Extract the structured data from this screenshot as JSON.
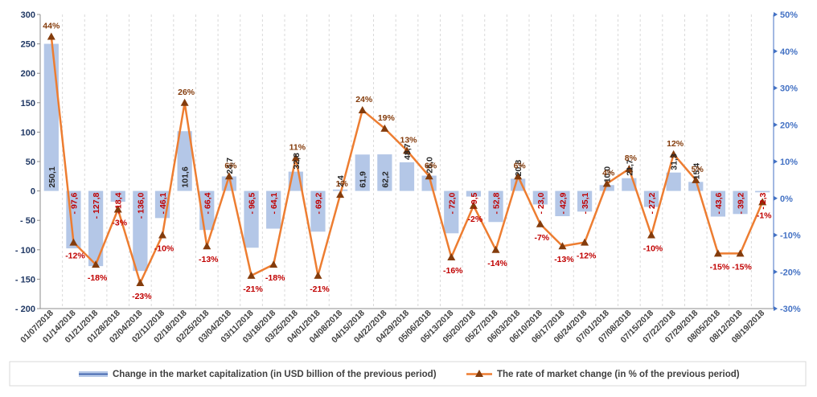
{
  "chart_data": {
    "type": "bar+line",
    "categories": [
      "01/07/2018",
      "01/14/2018",
      "01/21/2018",
      "01/28/2018",
      "02/04/2018",
      "02/11/2018",
      "02/18/2018",
      "02/25/2018",
      "03/04/2018",
      "03/11/2018",
      "03/18/2018",
      "03/25/2018",
      "04/01/2018",
      "04/08/2018",
      "04/15/2018",
      "04/22/2018",
      "04/29/2018",
      "05/06/2018",
      "05/13/2018",
      "05/20/2018",
      "05/27/2018",
      "06/03/2018",
      "06/10/2018",
      "06/17/2018",
      "06/24/2018",
      "07/01/2018",
      "07/08/2018",
      "07/15/2018",
      "07/22/2018",
      "07/29/2018",
      "08/05/2018",
      "08/12/2018",
      "08/19/2018"
    ],
    "series": [
      {
        "name": "Change in the market capitalization  (in USD billion of the previous period)",
        "axis": "left",
        "color": "#b4c7e7",
        "values": [
          250.1,
          -97.6,
          -127.8,
          -18.4,
          -136.0,
          -46.1,
          101.6,
          -66.4,
          24.7,
          -96.5,
          -64.1,
          32.8,
          -69.2,
          2.4,
          61.9,
          62.2,
          48.7,
          26.0,
          -72.0,
          -9.5,
          -52.8,
          20.8,
          -23.0,
          -42.9,
          -35.1,
          10.0,
          21.7,
          -27.2,
          31.3,
          15.4,
          -43.6,
          -39.2,
          -2.3
        ],
        "labels": [
          "250,1",
          "- 97,6",
          "- 127,8",
          "- 18,4",
          "- 136,0",
          "- 46,1",
          "101,6",
          "- 66,4",
          "24,7",
          "- 96,5",
          "- 64,1",
          "32,8",
          "- 69,2",
          "2,4",
          "61,9",
          "62,2",
          "48,7",
          "26,0",
          "- 72,0",
          "- 9,5",
          "- 52,8",
          "20,8",
          "- 23,0",
          "- 42,9",
          "- 35,1",
          "10,0",
          "21,7",
          "- 27,2",
          "31,3",
          "15,4",
          "- 43,6",
          "- 39,2",
          "- 2,3"
        ]
      },
      {
        "name": "The rate of market change (in % of the previous period)",
        "axis": "right",
        "color": "#ed7d31",
        "marker_color": "#843c0c",
        "values": [
          44,
          -12,
          -18,
          -3,
          -23,
          -10,
          26,
          -13,
          6,
          -21,
          -18,
          11,
          -21,
          1,
          24,
          19,
          13,
          6,
          -16,
          -2,
          -14,
          6,
          -7,
          -13,
          -12,
          4,
          8,
          -10,
          12,
          5,
          -15,
          -15,
          -1
        ],
        "labels": [
          "44%",
          "-12%",
          "-18%",
          "-3%",
          "-23%",
          "-10%",
          "26%",
          "-13%",
          "6%",
          "-21%",
          "-18%",
          "11%",
          "-21%",
          "1%",
          "24%",
          "19%",
          "13%",
          "6%",
          "-16%",
          "-2%",
          "-14%",
          "6%",
          "-7%",
          "-13%",
          "-12%",
          "4%",
          "8%",
          "-10%",
          "12%",
          "5%",
          "-15%",
          "-15%",
          "-1%"
        ]
      }
    ],
    "y_left": {
      "min": -200,
      "max": 300,
      "step": 50,
      "tick_labels": [
        "- 200",
        "- 150",
        "- 100",
        "- 50",
        "0",
        "50",
        "100",
        "150",
        "200",
        "250",
        "300"
      ]
    },
    "y_right": {
      "min": -30,
      "max": 50,
      "step": 10,
      "tick_labels": [
        "-30%",
        "-20%",
        "-10%",
        "0%",
        "10%",
        "20%",
        "30%",
        "40%",
        "50%"
      ]
    },
    "grid": "vertical",
    "legend": "bottom"
  }
}
